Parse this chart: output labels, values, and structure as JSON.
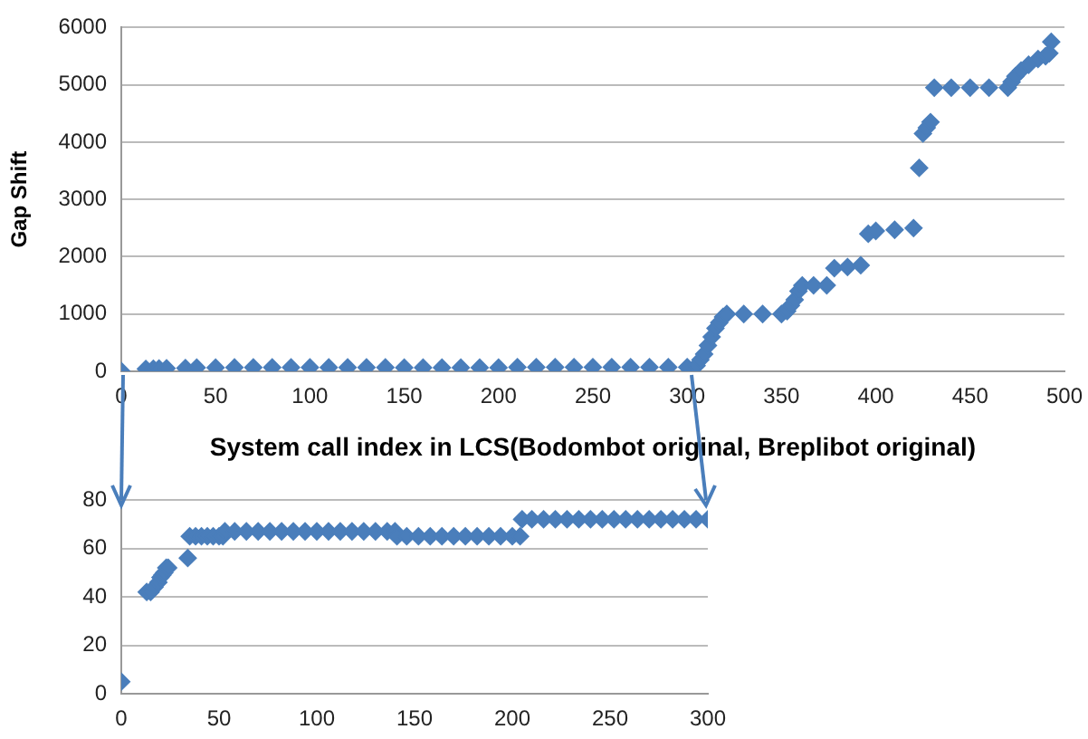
{
  "chart_data": [
    {
      "type": "scatter",
      "xlabel": "System call index in LCS(Bodombot original, Breplibot original)",
      "ylabel": "Gap Shift",
      "marker": "diamond",
      "grid": "y",
      "legend": false,
      "color": "#4a7ebb",
      "xlim": [
        0,
        500
      ],
      "xticks": [
        0,
        50,
        100,
        150,
        200,
        250,
        300,
        350,
        400,
        450,
        500
      ],
      "ylim": [
        0,
        6000
      ],
      "yticks": [
        0,
        1000,
        2000,
        3000,
        4000,
        5000,
        6000
      ],
      "x": [
        0,
        13,
        17,
        20,
        24,
        34,
        40,
        50,
        60,
        70,
        80,
        90,
        100,
        110,
        120,
        130,
        140,
        150,
        160,
        170,
        180,
        190,
        200,
        210,
        220,
        230,
        240,
        250,
        260,
        270,
        280,
        290,
        300,
        305,
        307,
        309,
        311,
        313,
        315,
        317,
        319,
        321,
        330,
        340,
        350,
        353,
        355,
        357,
        359,
        361,
        367,
        374,
        378,
        385,
        392,
        396,
        400,
        410,
        420,
        423,
        425,
        427,
        429,
        431,
        440,
        450,
        460,
        470,
        472,
        474,
        477,
        481,
        486,
        490,
        492,
        493
      ],
      "values": [
        5,
        42,
        44,
        48,
        52,
        56,
        65,
        65,
        67,
        67,
        67,
        67,
        67,
        67,
        67,
        67,
        67,
        65,
        65,
        65,
        65,
        65,
        65,
        72,
        72,
        72,
        72,
        72,
        72,
        72,
        72,
        72,
        72,
        100,
        200,
        300,
        450,
        600,
        750,
        850,
        950,
        1000,
        1000,
        1000,
        1000,
        1050,
        1150,
        1250,
        1400,
        1500,
        1500,
        1500,
        1800,
        1820,
        1850,
        2400,
        2450,
        2470,
        2500,
        3550,
        4150,
        4250,
        4350,
        4950,
        4950,
        4950,
        4950,
        4950,
        5050,
        5150,
        5250,
        5350,
        5450,
        5500,
        5550,
        5750
      ]
    },
    {
      "type": "scatter",
      "marker": "diamond",
      "grid": "y",
      "legend": false,
      "color": "#4a7ebb",
      "xlim": [
        0,
        300
      ],
      "xticks": [
        0,
        50,
        100,
        150,
        200,
        250,
        300
      ],
      "ylim": [
        0,
        80
      ],
      "yticks": [
        0,
        20,
        40,
        60,
        80
      ],
      "x": [
        0,
        13,
        15,
        17,
        19,
        20,
        21,
        22,
        23,
        24,
        34,
        35,
        38,
        41,
        44,
        47,
        50,
        52,
        53,
        58,
        64,
        70,
        76,
        82,
        88,
        94,
        100,
        106,
        112,
        118,
        124,
        130,
        136,
        140,
        141,
        146,
        152,
        158,
        164,
        170,
        176,
        182,
        188,
        194,
        200,
        204,
        205,
        210,
        216,
        222,
        228,
        234,
        240,
        246,
        252,
        258,
        264,
        270,
        276,
        282,
        288,
        294,
        300
      ],
      "values": [
        5,
        42,
        42,
        44,
        46,
        48,
        49,
        50,
        52,
        52,
        56,
        65,
        65,
        65,
        65,
        65,
        65,
        65,
        67,
        67,
        67,
        67,
        67,
        67,
        67,
        67,
        67,
        67,
        67,
        67,
        67,
        67,
        67,
        67,
        65,
        65,
        65,
        65,
        65,
        65,
        65,
        65,
        65,
        65,
        65,
        65,
        72,
        72,
        72,
        72,
        72,
        72,
        72,
        72,
        72,
        72,
        72,
        72,
        72,
        72,
        72,
        72,
        72
      ]
    }
  ]
}
